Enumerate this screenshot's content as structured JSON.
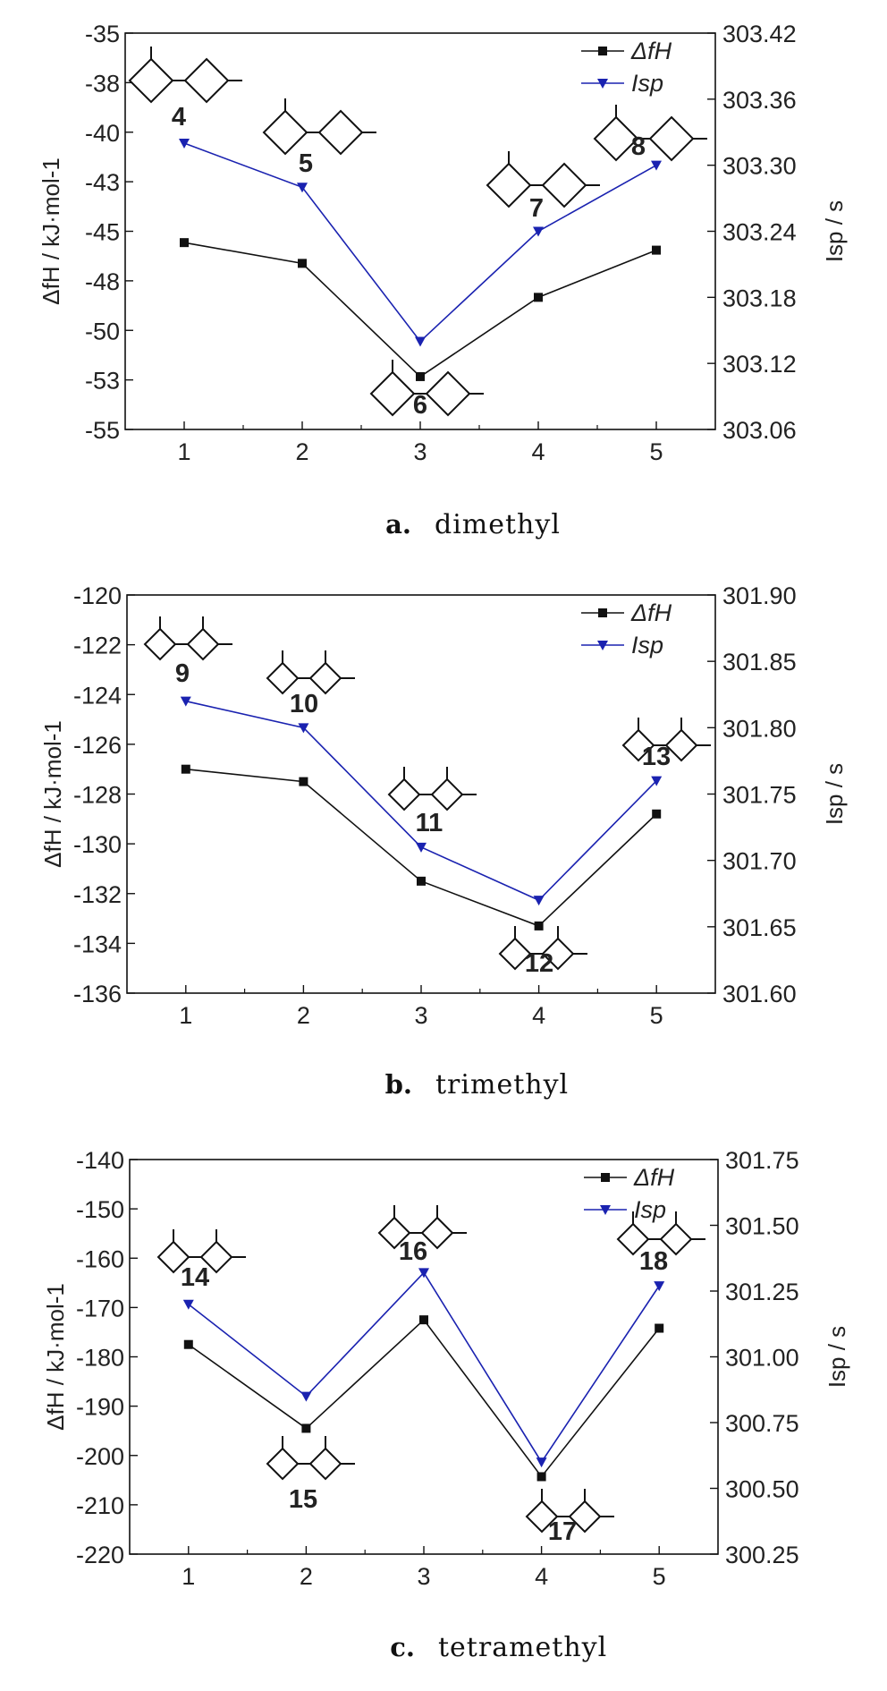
{
  "chart_data": [
    {
      "type": "line",
      "caption_letter": "a.",
      "caption_text": "dimethyl",
      "categories": [
        "1",
        "2",
        "3",
        "4",
        "5"
      ],
      "ylabel": "ΔfH / kJ·mol-1",
      "y2label": "Isp / s",
      "ylim": [
        -56,
        -35
      ],
      "y_ticks": [
        "-35",
        "-38",
        "-40",
        "-43",
        "-45",
        "-48",
        "-50",
        "-53",
        "-55"
      ],
      "y2lim": [
        303.06,
        303.42
      ],
      "y2_ticks": [
        "303.42",
        "303.36",
        "303.30",
        "303.24",
        "303.18",
        "303.12",
        "303.06"
      ],
      "compound_labels": [
        "4",
        "5",
        "6",
        "7",
        "8"
      ],
      "series": [
        {
          "name": "ΔfH",
          "axis": "left",
          "color": "#111111",
          "marker": "square",
          "values": [
            -46.1,
            -47.2,
            -53.2,
            -49.0,
            -46.5
          ]
        },
        {
          "name": "Isp",
          "axis": "right",
          "color": "#1a22b0",
          "marker": "triangle-down",
          "values": [
            303.32,
            303.28,
            303.14,
            303.24,
            303.3
          ]
        }
      ],
      "legend_position": "top-right"
    },
    {
      "type": "line",
      "caption_letter": "b.",
      "caption_text": "trimethyl",
      "categories": [
        "1",
        "2",
        "3",
        "4",
        "5"
      ],
      "ylabel": "ΔfH / kJ·mol-1",
      "y2label": "Isp / s",
      "ylim": [
        -136,
        -120
      ],
      "y_ticks": [
        "-120",
        "-122",
        "-124",
        "-126",
        "-128",
        "-130",
        "-132",
        "-134",
        "-136"
      ],
      "y2lim": [
        301.6,
        301.9
      ],
      "y2_ticks": [
        "301.90",
        "301.85",
        "301.80",
        "301.75",
        "301.70",
        "301.65",
        "301.60"
      ],
      "compound_labels": [
        "9",
        "10",
        "11",
        "12",
        "13"
      ],
      "series": [
        {
          "name": "ΔfH",
          "axis": "left",
          "color": "#111111",
          "marker": "square",
          "values": [
            -127.0,
            -127.5,
            -131.5,
            -133.3,
            -128.8
          ]
        },
        {
          "name": "Isp",
          "axis": "right",
          "color": "#1a22b0",
          "marker": "triangle-down",
          "values": [
            301.82,
            301.8,
            301.71,
            301.67,
            301.76
          ]
        }
      ],
      "legend_position": "top-right"
    },
    {
      "type": "line",
      "caption_letter": "c.",
      "caption_text": "tetramethyl",
      "categories": [
        "1",
        "2",
        "3",
        "4",
        "5"
      ],
      "ylabel": "ΔfH / kJ·mol-1",
      "y2label": "Isp / s",
      "ylim": [
        -220,
        -140
      ],
      "y_ticks": [
        "-140",
        "-150",
        "-160",
        "-170",
        "-180",
        "-190",
        "-200",
        "-210",
        "-220"
      ],
      "y2lim": [
        300.25,
        301.75
      ],
      "y2_ticks": [
        "301.75",
        "301.50",
        "301.25",
        "301.00",
        "300.75",
        "300.50",
        "300.25"
      ],
      "compound_labels": [
        "14",
        "15",
        "16",
        "17",
        "18"
      ],
      "series": [
        {
          "name": "ΔfH",
          "axis": "left",
          "color": "#111111",
          "marker": "square",
          "values": [
            -177.5,
            -194.5,
            -172.5,
            -204.3,
            -174.2
          ]
        },
        {
          "name": "Isp",
          "axis": "right",
          "color": "#1a22b0",
          "marker": "triangle-down",
          "values": [
            301.2,
            300.85,
            301.32,
            300.6,
            301.27
          ]
        }
      ],
      "legend_position": "top-right"
    }
  ]
}
